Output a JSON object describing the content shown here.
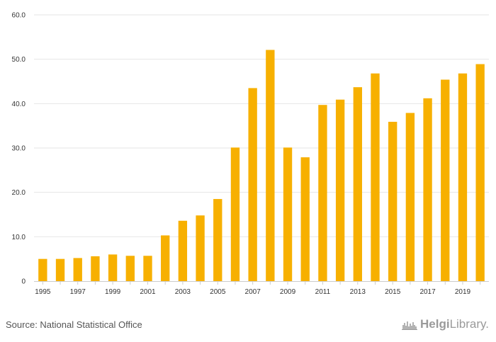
{
  "chart_data": {
    "type": "bar",
    "categories": [
      "1995",
      "1996",
      "1997",
      "1998",
      "1999",
      "2000",
      "2001",
      "2002",
      "2003",
      "2004",
      "2005",
      "2006",
      "2007",
      "2008",
      "2009",
      "2010",
      "2011",
      "2012",
      "2013",
      "2014",
      "2015",
      "2016",
      "2017",
      "2018",
      "2019",
      "2020"
    ],
    "x_tick_labels": [
      "1995",
      "1997",
      "1999",
      "2001",
      "2003",
      "2005",
      "2007",
      "2009",
      "2011",
      "2013",
      "2015",
      "2017",
      "2019"
    ],
    "values": [
      5.0,
      5.0,
      5.2,
      5.6,
      6.0,
      5.7,
      5.7,
      10.3,
      13.6,
      14.8,
      18.5,
      30.1,
      43.5,
      52.1,
      30.1,
      27.9,
      39.7,
      40.9,
      43.7,
      46.8,
      35.9,
      37.9,
      41.2,
      45.4,
      46.8,
      48.9
    ],
    "y_ticks": [
      0,
      10,
      20,
      30,
      40,
      50,
      60
    ],
    "y_tick_labels": [
      "0",
      "10.0",
      "20.0",
      "30.0",
      "40.0",
      "50.0",
      "60.0"
    ],
    "ylim": [
      0,
      60
    ],
    "bar_color": "#f7b000",
    "grid": true,
    "title": "",
    "xlabel": "",
    "ylabel": ""
  },
  "footer": {
    "source": "Source: National Statistical Office",
    "logo_part1": "Helgi",
    "logo_part2": "Library."
  }
}
